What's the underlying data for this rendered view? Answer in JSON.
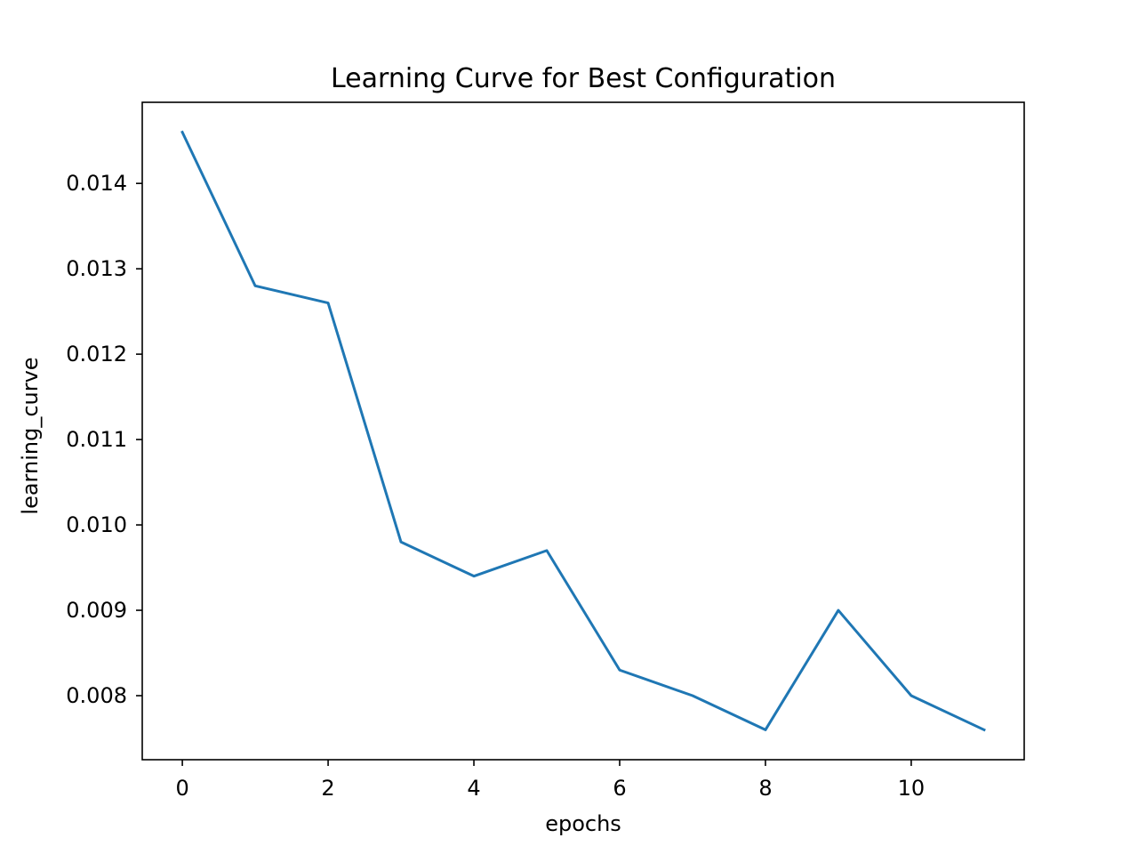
{
  "chart_data": {
    "type": "line",
    "title": "Learning Curve for Best Configuration",
    "xlabel": "epochs",
    "ylabel": "learning_curve",
    "x": [
      0,
      1,
      2,
      3,
      4,
      5,
      6,
      7,
      8,
      9,
      10,
      11
    ],
    "series": [
      {
        "values": [
          0.0146,
          0.0128,
          0.0126,
          0.0098,
          0.0094,
          0.0097,
          0.0083,
          0.008,
          0.0076,
          0.009,
          0.008,
          0.0076
        ],
        "color": "#1f77b4"
      }
    ],
    "xlim": [
      -0.55,
      11.55
    ],
    "ylim": [
      0.00725,
      0.01495
    ],
    "xticks": [
      0,
      2,
      4,
      6,
      8,
      10
    ],
    "xtick_labels": [
      "0",
      "2",
      "4",
      "6",
      "8",
      "10"
    ],
    "yticks": [
      0.008,
      0.009,
      0.01,
      0.011,
      0.012,
      0.013,
      0.014
    ],
    "ytick_labels": [
      "0.008",
      "0.009",
      "0.010",
      "0.011",
      "0.012",
      "0.013",
      "0.014"
    ],
    "grid": false,
    "legend": "none"
  }
}
